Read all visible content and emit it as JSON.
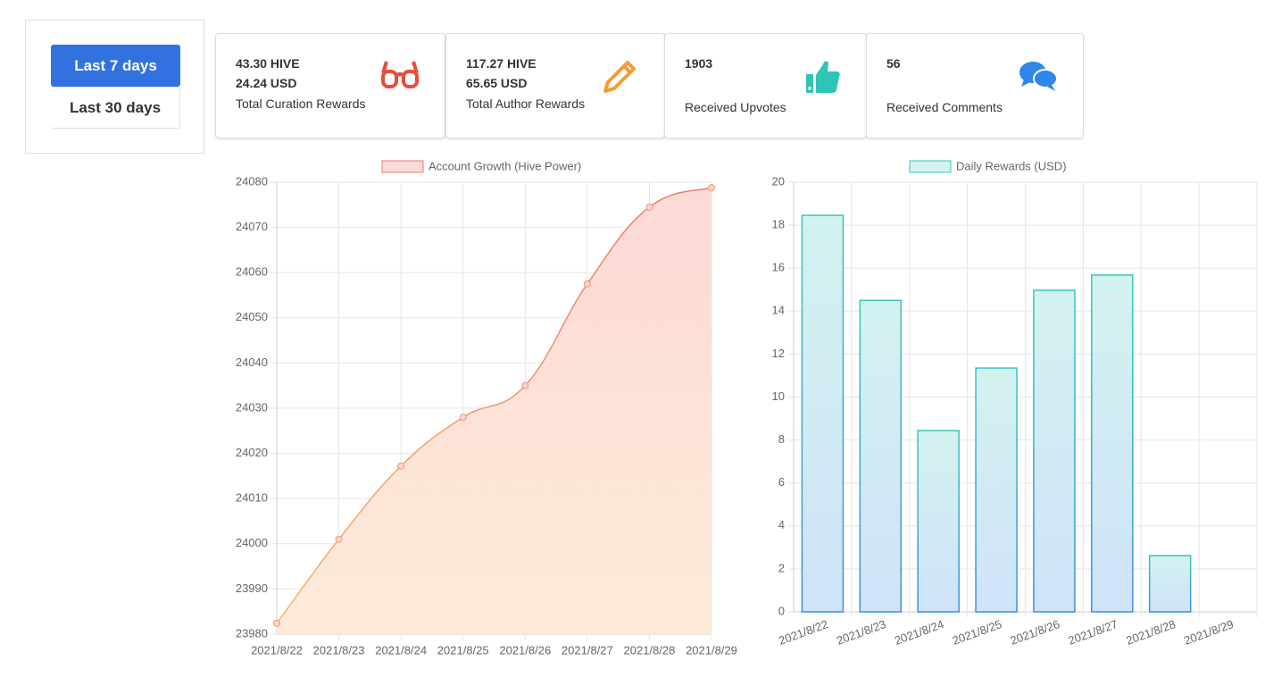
{
  "buttons": [
    "Last 7 days",
    "Last 30 days"
  ],
  "cards": [
    {
      "values": [
        "43.30 HIVE",
        "24.24 USD"
      ],
      "label": "Total Curation Rewards"
    },
    {
      "values": [
        "117.27 HIVE",
        "65.65 USD"
      ],
      "label": "Total Author Rewards"
    },
    {
      "values": [
        "1903"
      ],
      "label": "Received Upvotes"
    },
    {
      "values": [
        "56"
      ],
      "label": "Received Comments"
    }
  ],
  "chart_data": [
    {
      "type": "line",
      "categories": [
        "2021/8/22",
        "2021/8/23",
        "2021/8/24",
        "2021/8/25",
        "2021/8/26",
        "2021/8/27",
        "2021/8/28",
        "2021/8/29"
      ],
      "series": [
        {
          "name": "Account Growth (Hive Power)",
          "color": "#f2967a",
          "values": [
            23982.4,
            24001,
            24017.2,
            24028,
            24035,
            24057.5,
            24074.5,
            24078.8
          ]
        }
      ],
      "ylim": [
        23980,
        24080
      ],
      "yticks": [
        23980,
        23990,
        24000,
        24010,
        24020,
        24030,
        24040,
        24050,
        24060,
        24070,
        24080
      ],
      "grid": true
    },
    {
      "type": "bar",
      "categories": [
        "2021/8/22",
        "2021/8/23",
        "2021/8/24",
        "2021/8/25",
        "2021/8/26",
        "2021/8/27",
        "2021/8/28",
        "2021/8/29"
      ],
      "series": [
        {
          "name": "Daily Rewards (USD)",
          "color": "#36a2eb",
          "values": [
            18.46,
            14.5,
            8.44,
            11.35,
            14.97,
            15.68,
            2.62,
            0
          ]
        }
      ],
      "ylim": [
        0,
        20
      ],
      "yticks": [
        0,
        2,
        4,
        6,
        8,
        10,
        12,
        14,
        16,
        18,
        20
      ],
      "grid": true
    }
  ]
}
